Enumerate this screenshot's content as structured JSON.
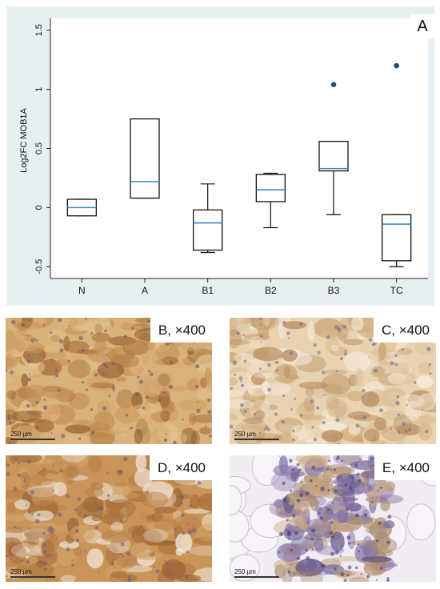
{
  "panel_a": {
    "letter": "A"
  },
  "chart_data": {
    "type": "box",
    "title": "",
    "xlabel": "",
    "ylabel": "Log2FC MOB1A",
    "categories": [
      "N",
      "A",
      "B1",
      "B2",
      "B3",
      "TC"
    ],
    "ylim": [
      -0.6,
      1.6
    ],
    "yticks": [
      -0.5,
      0,
      0.5,
      1,
      1.5
    ],
    "ytick_labels": [
      "-0.5",
      "0",
      "0.5",
      "1",
      "1.5"
    ],
    "boxes": [
      {
        "category": "N",
        "whisker_low": -0.07,
        "q1": -0.07,
        "median": 0.0,
        "q3": 0.07,
        "whisker_high": 0.07,
        "outliers": []
      },
      {
        "category": "A",
        "whisker_low": 0.08,
        "q1": 0.08,
        "median": 0.22,
        "q3": 0.75,
        "whisker_high": 0.75,
        "outliers": []
      },
      {
        "category": "B1",
        "whisker_low": -0.38,
        "q1": -0.36,
        "median": -0.13,
        "q3": -0.02,
        "whisker_high": 0.2,
        "outliers": []
      },
      {
        "category": "B2",
        "whisker_low": -0.17,
        "q1": 0.05,
        "median": 0.15,
        "q3": 0.28,
        "whisker_high": 0.29,
        "outliers": []
      },
      {
        "category": "B3",
        "whisker_low": -0.06,
        "q1": 0.31,
        "median": 0.33,
        "q3": 0.56,
        "whisker_high": 0.56,
        "outliers": [
          1.04
        ]
      },
      {
        "category": "TC",
        "whisker_low": -0.5,
        "q1": -0.45,
        "median": -0.14,
        "q3": -0.06,
        "whisker_high": -0.06,
        "outliers": [
          1.2
        ]
      }
    ],
    "grid": false,
    "legend": "none",
    "colors": {
      "median": "#3a86c8",
      "box": "#111111",
      "outlier": "#1d4f73",
      "background": "#e7eff3",
      "plot_area": "#ffffff"
    }
  },
  "micrographs": [
    {
      "label": "B, ×400",
      "scale": "250 µm",
      "tone": "brown-dense"
    },
    {
      "label": "C, ×400",
      "scale": "250 µm",
      "tone": "light-mixed"
    },
    {
      "label": "D, ×400",
      "scale": "250 µm",
      "tone": "brown-stroma"
    },
    {
      "label": "E, ×400",
      "scale": "250 µm",
      "tone": "fat-lymph"
    }
  ]
}
